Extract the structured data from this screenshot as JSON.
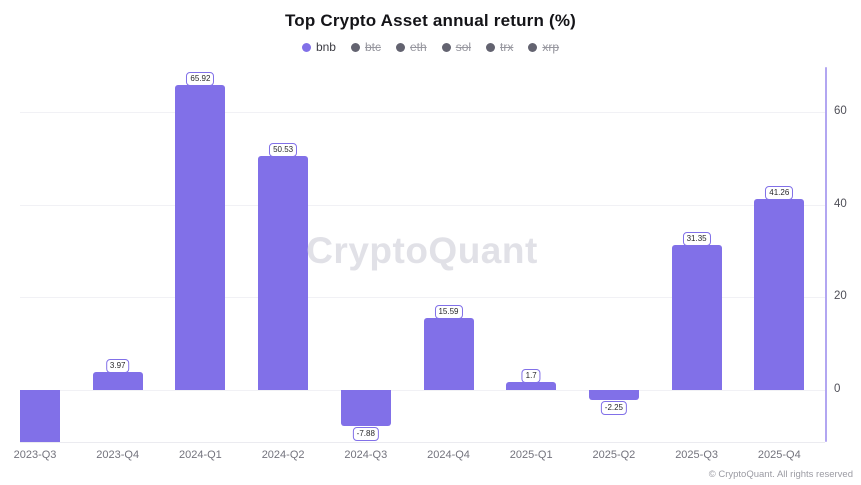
{
  "chart_data": {
    "type": "bar",
    "title": "Top Crypto Asset annual return (%)",
    "categories": [
      "2023-Q3",
      "2023-Q4",
      "2024-Q1",
      "2024-Q2",
      "2024-Q3",
      "2024-Q4",
      "2025-Q1",
      "2025-Q2",
      "2025-Q3",
      "2025-Q4"
    ],
    "series": [
      {
        "name": "bnb",
        "color": "#8170e8",
        "values": [
          null,
          3.97,
          65.92,
          50.53,
          -7.88,
          15.59,
          1.7,
          -2.25,
          31.35,
          41.26
        ],
        "data_labels": [
          "",
          "3.97",
          "65.92",
          "50.53",
          "-7.88",
          "15.59",
          "1.7",
          "-2.25",
          "31.35",
          "41.26"
        ]
      }
    ],
    "clipped_bars": [
      "2023-Q3"
    ],
    "y_axis": {
      "side": "right",
      "ticks": [
        0,
        20,
        40,
        60
      ],
      "visible_min": -11.2,
      "visible_max": 69.8
    },
    "grid": "horizontal",
    "legend": {
      "position": "top",
      "items": [
        {
          "label": "bnb",
          "active": true
        },
        {
          "label": "btc",
          "active": false
        },
        {
          "label": "eth",
          "active": false
        },
        {
          "label": "sol",
          "active": false
        },
        {
          "label": "trx",
          "active": false
        },
        {
          "label": "xrp",
          "active": false
        }
      ]
    }
  },
  "watermark": {
    "text": "CryptoQuant"
  },
  "footer": {
    "copyright": "© CryptoQuant. All rights reserved"
  },
  "colors": {
    "bar": "#8170e8",
    "legend_inactive_dot": "#636370",
    "axis_line": "#b2a6f1",
    "gridline": "#f1f1f5",
    "watermark_text": "#e1e1e7"
  }
}
